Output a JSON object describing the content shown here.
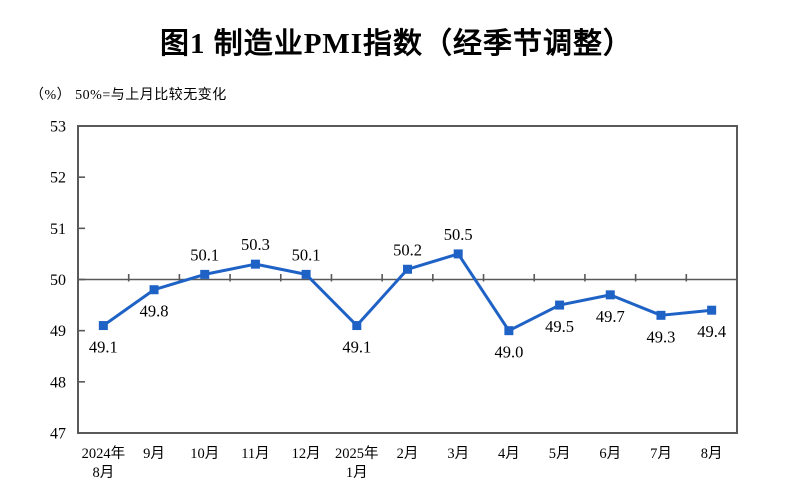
{
  "chart_data": {
    "type": "line",
    "title": "图1  制造业PMI指数（经季节调整）",
    "unit_note": "（%） 50%=与上月比较无变化",
    "series_name": "制造业PMI指数",
    "categories": [
      [
        "2024年",
        "8月"
      ],
      [
        "9月"
      ],
      [
        "10月"
      ],
      [
        "11月"
      ],
      [
        "12月"
      ],
      [
        "2025年",
        "1月"
      ],
      [
        "2月"
      ],
      [
        "3月"
      ],
      [
        "4月"
      ],
      [
        "5月"
      ],
      [
        "6月"
      ],
      [
        "7月"
      ],
      [
        "8月"
      ]
    ],
    "values": [
      49.1,
      49.8,
      50.1,
      50.3,
      50.1,
      49.1,
      50.2,
      50.5,
      49.0,
      49.5,
      49.7,
      49.3,
      49.4
    ],
    "data_labels": true,
    "ylim": [
      47,
      53
    ],
    "ytick_step": 1,
    "yticks": [
      47,
      48,
      49,
      50,
      51,
      52,
      53
    ],
    "reference_line": 50,
    "grid": false,
    "legend": "none",
    "colors": {
      "line": "#1E62C6",
      "marker": "#1E62C6",
      "axis": "#595959",
      "reference_line": "#595959",
      "text": "#000000"
    }
  }
}
